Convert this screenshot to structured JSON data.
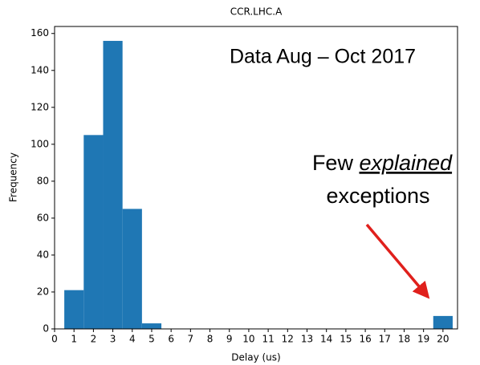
{
  "chart_data": {
    "type": "histogram",
    "title": "CCR.LHC.A",
    "x_label": "Delay (us)",
    "y_label": "Frequency",
    "bins": [
      0.5,
      1.5,
      2.5,
      3.5,
      4.5,
      5.5,
      6.5,
      7.5,
      8.5,
      9.5,
      10.5,
      11.5,
      12.5,
      13.5,
      14.5,
      15.5,
      16.5,
      17.5,
      18.5,
      19.5,
      20.5
    ],
    "counts": [
      21,
      105,
      156,
      65,
      3,
      0,
      0,
      0,
      0,
      0,
      0,
      0,
      0,
      0,
      0,
      0,
      0,
      0,
      0,
      7
    ],
    "color": "#1f77b4",
    "xlim": [
      0,
      20.75
    ],
    "ylim": [
      0,
      163.8
    ],
    "xticks": [
      0,
      1,
      2,
      3,
      4,
      5,
      6,
      7,
      8,
      9,
      10,
      11,
      12,
      13,
      14,
      15,
      16,
      17,
      18,
      19,
      20
    ],
    "yticks": [
      0,
      20,
      40,
      60,
      80,
      100,
      120,
      140,
      160
    ],
    "annotations": [
      {
        "text": "Data Aug – Oct 2017",
        "color": "#6464f0"
      },
      {
        "parts": [
          "Few",
          "explained",
          "exceptions"
        ],
        "color": "#14147a"
      }
    ],
    "arrow_color": "#e0201c"
  }
}
